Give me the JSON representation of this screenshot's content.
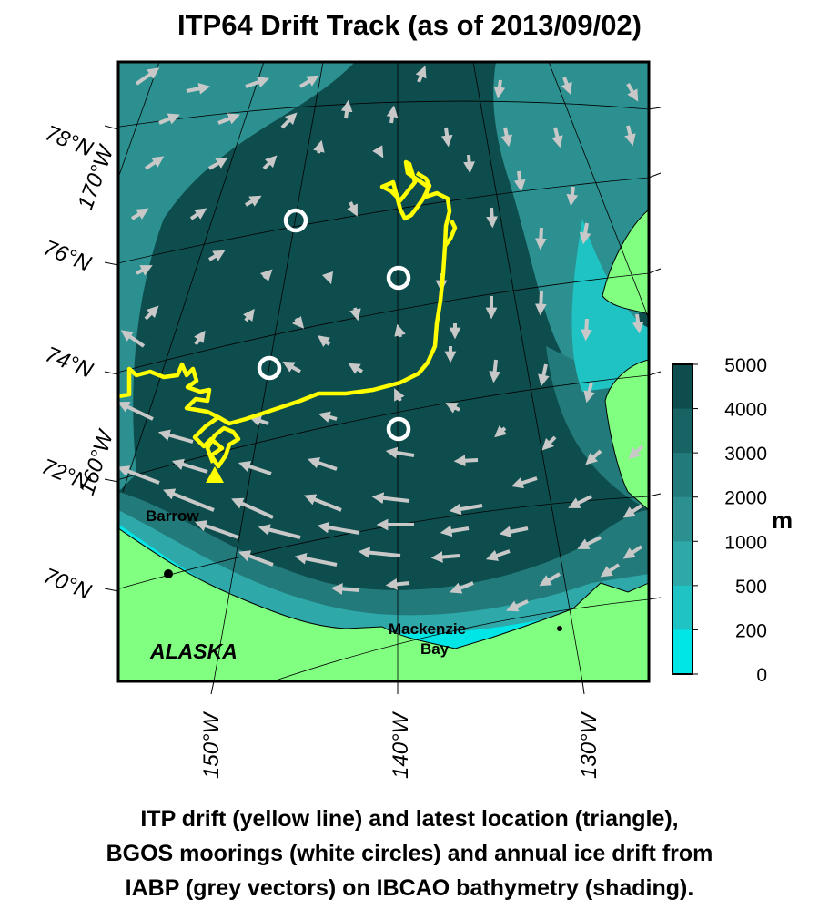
{
  "title": "ITP64 Drift Track (as of 2013/09/02)",
  "latitude_labels": [
    "78°N",
    "76°N",
    "74°N",
    "72°N",
    "70°N"
  ],
  "longitude_labels_left": [
    "170°W",
    "160°W"
  ],
  "longitude_labels_bottom": [
    "150°W",
    "140°W",
    "130°W"
  ],
  "place_labels": {
    "barrow": "Barrow",
    "alaska": "ALASKA",
    "mackenzie_line1": "Mackenzie",
    "mackenzie_line2": "Bay"
  },
  "colorbar": {
    "unit": "m",
    "ticks": [
      "5000",
      "4000",
      "3000",
      "2000",
      "1000",
      "500",
      "200",
      "0"
    ],
    "colors": [
      "#0d4d4d",
      "#186363",
      "#237a7a",
      "#2d9090",
      "#2ea8a8",
      "#1fc3c3",
      "#00e5e5"
    ]
  },
  "colors": {
    "land": "#80ff80",
    "drift_track": "#ffff00",
    "ice_vectors": "#c8c8c8",
    "moorings": "#ffffff"
  },
  "caption": [
    "ITP drift (yellow line) and latest location (triangle),",
    "BGOS moorings (white circles) and annual ice drift from",
    "IABP (grey vectors) on IBCAO bathymetry (shading)."
  ]
}
